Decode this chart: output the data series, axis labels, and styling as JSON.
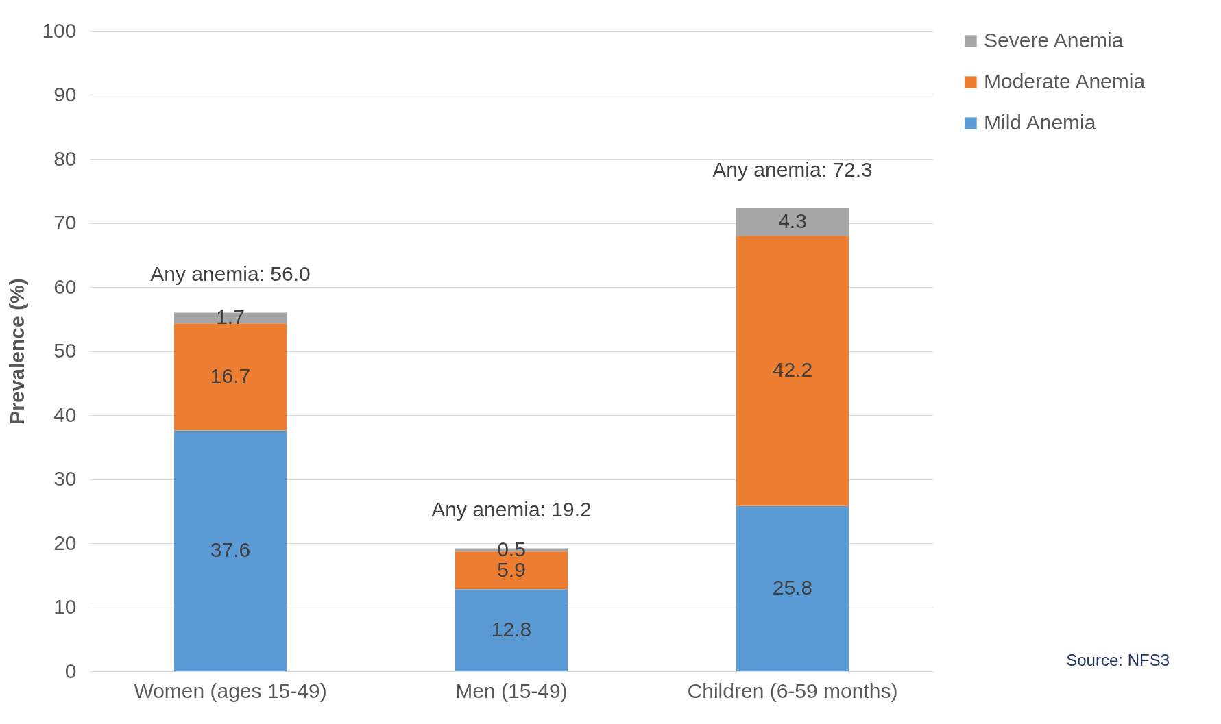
{
  "chart_data": {
    "type": "bar",
    "stacked": true,
    "ylabel": "Prevalence (%)",
    "categories": [
      "Women (ages 15-49)",
      "Men (15-49)",
      "Children (6-59 months)"
    ],
    "series": [
      {
        "name": "Mild Anemia",
        "color": "#5b9bd5",
        "values": [
          37.6,
          12.8,
          25.8
        ]
      },
      {
        "name": "Moderate Anemia",
        "color": "#ed7d31",
        "values": [
          16.7,
          5.9,
          42.2
        ]
      },
      {
        "name": "Severe Anemia",
        "color": "#a5a5a5",
        "values": [
          1.7,
          0.5,
          4.3
        ]
      }
    ],
    "totals": [
      "Any anemia: 56.0",
      "Any anemia: 19.2",
      "Any anemia: 72.3"
    ],
    "data_labels": true,
    "ylim": [
      0,
      100
    ],
    "yticks": [
      0,
      10,
      20,
      30,
      40,
      50,
      60,
      70,
      80,
      90,
      100
    ],
    "grid": "y",
    "legend": "right",
    "annotations": [
      "Source: NFS3"
    ]
  }
}
